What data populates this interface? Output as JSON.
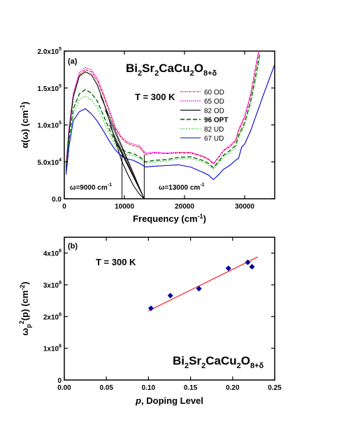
{
  "chart_data": [
    {
      "type": "line",
      "panel_label": "(a)",
      "formula": {
        "main": [
          "Bi",
          "Sr",
          "CaCu",
          "O"
        ],
        "subs": [
          "2",
          "2",
          "2",
          "8+δ"
        ]
      },
      "temperature_label": "T = 300 K",
      "xlabel": "Frequency (cm",
      "xlabel_sup": "-1",
      "xlabel_tail": ")",
      "ylabel": "α(ω) (cm",
      "ylabel_sup": "-1",
      "ylabel_tail": ")",
      "xlim": [
        0,
        35000
      ],
      "ylim": [
        0,
        200000
      ],
      "xticks": [
        {
          "v": 0,
          "label": "0"
        },
        {
          "v": 10000,
          "label": "10000"
        },
        {
          "v": 20000,
          "label": "20000"
        },
        {
          "v": 30000,
          "label": "30000"
        }
      ],
      "yticks": [
        {
          "v": 0,
          "label": "0.0"
        },
        {
          "v": 50000,
          "label": "5.0x10",
          "sup": "4"
        },
        {
          "v": 100000,
          "label": "1.0x10",
          "sup": "5"
        },
        {
          "v": 150000,
          "label": "1.5x10",
          "sup": "5"
        },
        {
          "v": 200000,
          "label": "2.0x10",
          "sup": "5"
        }
      ],
      "annotations": [
        {
          "text": "ω=9000 cm",
          "sup": "-1",
          "x": 9000
        },
        {
          "text": "ω=13000 cm",
          "sup": "-1",
          "x": 13000
        }
      ],
      "cutoff_lines": [
        9600,
        13300
      ],
      "series": [
        {
          "name": "60 OD",
          "color": "#cc0000",
          "dash": "3,1,1,1",
          "x": [
            300,
            800,
            1500,
            2500,
            3500,
            4500,
            5500,
            6500,
            7500,
            8500,
            9500,
            10500,
            11500,
            12500,
            13500,
            15000,
            17000,
            19000,
            21000,
            23000,
            24000,
            24800,
            25600,
            26500,
            27500,
            28500,
            29000,
            30000,
            31000,
            31800,
            32500
          ],
          "y": [
            45000,
            95000,
            140000,
            168000,
            175000,
            172000,
            160000,
            140000,
            118000,
            95000,
            82000,
            75000,
            72000,
            70000,
            60000,
            62000,
            61000,
            62000,
            62000,
            57000,
            53000,
            47000,
            55000,
            65000,
            70000,
            78000,
            92000,
            110000,
            140000,
            175000,
            205000
          ]
        },
        {
          "name": "65 OD",
          "color": "#ff00ff",
          "dash": "2,1",
          "x": [
            300,
            800,
            1500,
            2500,
            3500,
            4500,
            5500,
            6500,
            7500,
            8500,
            9500,
            10500,
            11500,
            12500,
            13500,
            15000,
            17000,
            19000,
            21000,
            23000,
            24000,
            24800,
            25600,
            26500,
            27500,
            28500,
            29000,
            30000,
            31000,
            31800,
            32500
          ],
          "y": [
            46000,
            97000,
            143000,
            171000,
            178000,
            175000,
            163000,
            143000,
            120000,
            97000,
            84000,
            77000,
            74000,
            72000,
            62000,
            63000,
            62000,
            63000,
            63000,
            58000,
            54000,
            48000,
            56000,
            66000,
            72000,
            80000,
            94000,
            112000,
            142000,
            178000,
            208000
          ]
        },
        {
          "name": "82 OD",
          "color": "#000000",
          "dash": "",
          "x": [
            300,
            800,
            1500,
            2500,
            3500,
            4500,
            5500,
            6500,
            7500,
            8500,
            9500,
            10500,
            11500,
            12500,
            13300
          ],
          "y": [
            42000,
            92000,
            138000,
            166000,
            172000,
            168000,
            154000,
            132000,
            106000,
            78000,
            52000,
            34000,
            18000,
            6000,
            0
          ]
        },
        {
          "name": "96 OPT",
          "color": "#006600",
          "dash": "6,3",
          "bold": true,
          "x": [
            300,
            800,
            1500,
            2500,
            3500,
            4500,
            5500,
            6500,
            7500,
            8500,
            9500,
            10500,
            11500,
            12500,
            13500,
            15000,
            17000,
            19000,
            21000,
            23000,
            24000,
            24800,
            25600,
            26500,
            27500,
            28500,
            29000,
            30000,
            31000,
            31800,
            32500
          ],
          "y": [
            38000,
            82000,
            122000,
            142000,
            148000,
            143000,
            132000,
            113000,
            94000,
            77000,
            67000,
            63000,
            61000,
            57000,
            50000,
            52000,
            53000,
            56000,
            57000,
            52000,
            48000,
            42000,
            50000,
            59000,
            65000,
            72000,
            86000,
            103000,
            132000,
            165000,
            195000
          ]
        },
        {
          "name": "82 UD",
          "color": "#33cc33",
          "dash": "2,2",
          "x": [
            300,
            800,
            1500,
            2500,
            3500,
            4500,
            5500,
            6500,
            7500,
            8500,
            9500,
            10500,
            11500,
            12500,
            13500,
            15000,
            17000,
            19000,
            21000,
            23000,
            24000,
            24800,
            25600,
            26500,
            27500,
            28500,
            29000,
            30000,
            31000,
            31800,
            32500
          ],
          "y": [
            36000,
            78000,
            114000,
            134000,
            139000,
            134000,
            123000,
            106000,
            88000,
            72000,
            63000,
            60000,
            58000,
            55000,
            48000,
            50000,
            51000,
            54000,
            55000,
            50000,
            46000,
            40000,
            48000,
            57000,
            62000,
            69000,
            83000,
            100000,
            128000,
            160000,
            190000
          ]
        },
        {
          "name": "67 UD",
          "color": "#0000cc",
          "dash": "",
          "x": [
            300,
            800,
            1500,
            2500,
            3500,
            4500,
            5500,
            6500,
            7500,
            8500,
            9500,
            10500,
            11500,
            12500,
            13500,
            15000,
            17000,
            19000,
            21000,
            23000,
            24000,
            24800,
            25600,
            26500,
            27500,
            28500,
            29000,
            29500,
            30000,
            31000,
            32000,
            33000,
            34000,
            35000
          ],
          "y": [
            33000,
            72000,
            106000,
            118000,
            122000,
            115000,
            105000,
            92000,
            78000,
            66000,
            58000,
            54000,
            52000,
            48000,
            43000,
            44000,
            45000,
            46000,
            43000,
            36000,
            32000,
            26000,
            32000,
            40000,
            45000,
            52000,
            55000,
            70000,
            74000,
            92000,
            115000,
            138000,
            160000,
            182000
          ]
        }
      ]
    },
    {
      "type": "scatter",
      "panel_label": "(b)",
      "formula": {
        "main": [
          "Bi",
          "Sr",
          "CaCu",
          "O"
        ],
        "subs": [
          "2",
          "2",
          "2",
          "8+δ"
        ]
      },
      "temperature_label": "T = 300 K",
      "xlabel": "p",
      "xlabel_tail": ", Doping Level",
      "ylabel": "ω",
      "ylabel_sub": "p",
      "ylabel_sup": "2",
      "ylabel_tail": "(p) (cm",
      "ylabel_sup2": "-2",
      "ylabel_end": ")",
      "xlim": [
        0.0,
        0.25
      ],
      "ylim": [
        0,
        450000000
      ],
      "xticks": [
        {
          "v": 0.0,
          "label": "0.00"
        },
        {
          "v": 0.05,
          "label": "0.05"
        },
        {
          "v": 0.1,
          "label": "0.10"
        },
        {
          "v": 0.15,
          "label": "0.15"
        },
        {
          "v": 0.2,
          "label": "0.20"
        },
        {
          "v": 0.25,
          "label": "0.25"
        }
      ],
      "yticks": [
        {
          "v": 0,
          "label": "0"
        },
        {
          "v": 100000000,
          "label": "1x10",
          "sup": "8"
        },
        {
          "v": 200000000,
          "label": "2x10",
          "sup": "8"
        },
        {
          "v": 300000000,
          "label": "3x10",
          "sup": "8"
        },
        {
          "v": 400000000,
          "label": "4x10",
          "sup": "8"
        }
      ],
      "points": {
        "color": "#000099",
        "x": [
          0.103,
          0.126,
          0.16,
          0.195,
          0.218,
          0.223
        ],
        "y": [
          226000000,
          266000000,
          288000000,
          352000000,
          371000000,
          357000000
        ]
      },
      "fit_line": {
        "color": "#ff0000",
        "x": [
          0.1,
          0.23
        ],
        "y": [
          218000000,
          388000000
        ]
      }
    }
  ]
}
